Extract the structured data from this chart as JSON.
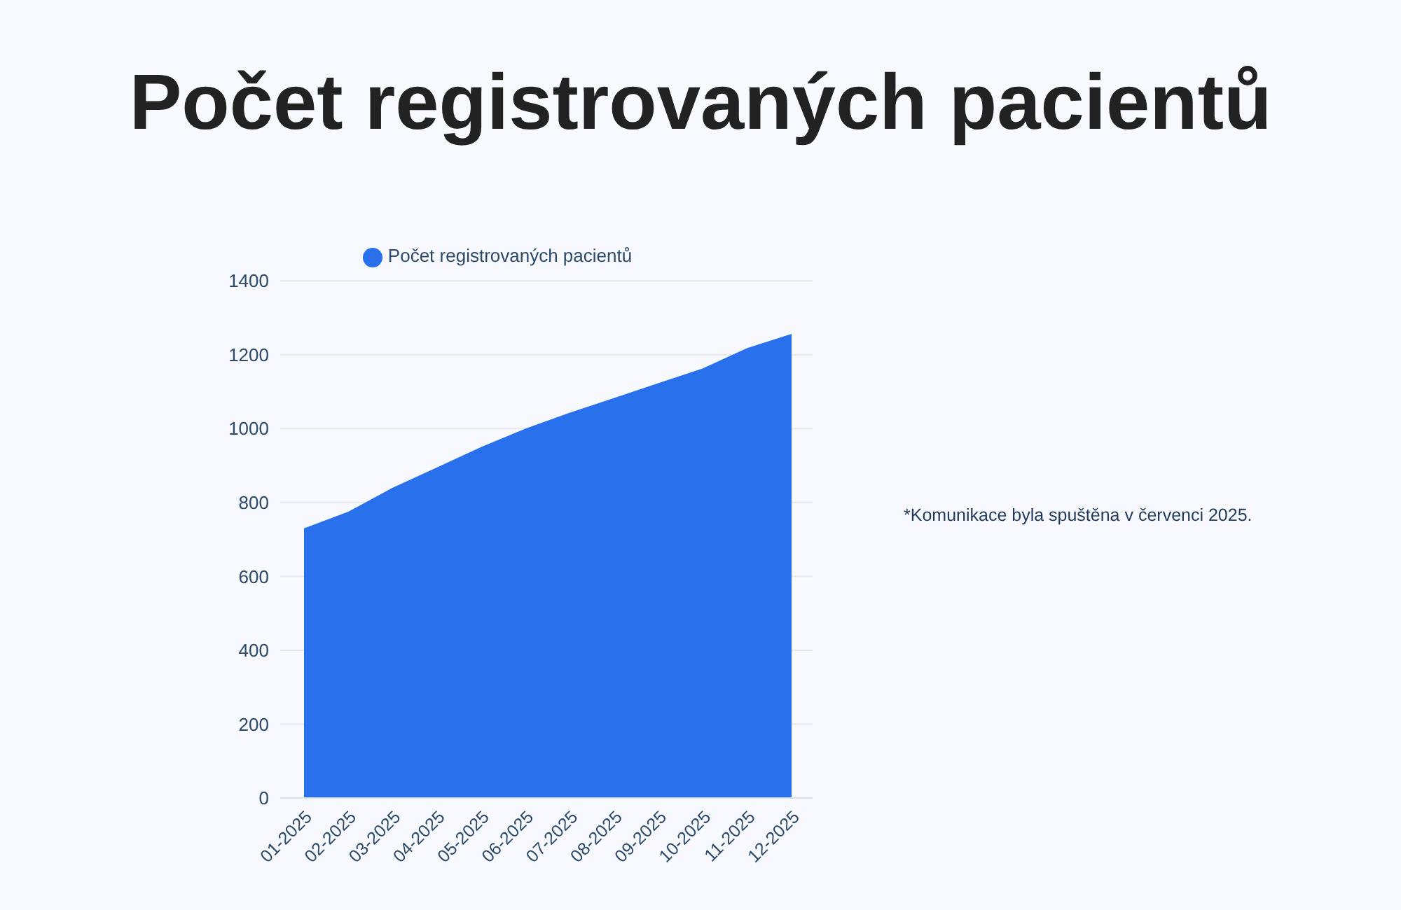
{
  "chart_data": {
    "type": "area",
    "title": "Počet registrovaných pacientů",
    "categories": [
      "01-2025",
      "02-2025",
      "03-2025",
      "04-2025",
      "05-2025",
      "06-2025",
      "07-2025",
      "08-2025",
      "09-2025",
      "10-2025",
      "11-2025",
      "12-2025"
    ],
    "series": [
      {
        "name": "Počet registrovaných pacientů",
        "color": "#2970ec",
        "values": [
          730,
          775,
          840,
          895,
          950,
          1000,
          1043,
          1083,
          1123,
          1163,
          1218,
          1256
        ]
      }
    ],
    "ylim": [
      0,
      1400
    ],
    "yticks": [
      0,
      200,
      400,
      600,
      800,
      1000,
      1200,
      1400
    ],
    "grid": "y",
    "legend": "top",
    "annotations": [
      "*Komunikace byla spuštěna v červenci 2025."
    ]
  }
}
